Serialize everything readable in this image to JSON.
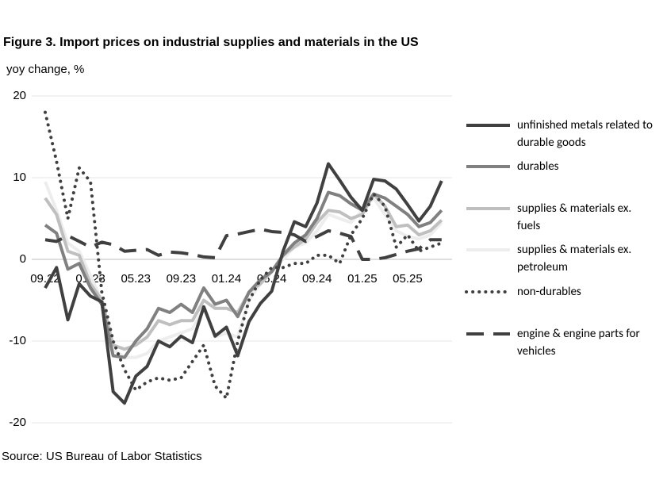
{
  "chart_data": {
    "type": "line",
    "title": "Figure 3. Import prices on industrial supplies and materials in the US",
    "y_label": "yoy change, %",
    "source": "Source: US Bureau of Labor Statistics",
    "categories": [
      "09.22",
      null,
      null,
      null,
      "01.23",
      null,
      null,
      null,
      "05.23",
      null,
      null,
      null,
      "09.23",
      null,
      null,
      null,
      "01.24",
      null,
      null,
      null,
      "05.24",
      null,
      null,
      null,
      "09.24",
      null,
      null,
      null,
      "01.25",
      null,
      null,
      null,
      "05.25",
      null,
      null,
      null
    ],
    "ylim": [
      -20,
      20
    ],
    "yticks": [
      -20,
      -10,
      0,
      10,
      20
    ],
    "grid": true,
    "series": [
      {
        "name": "unfinished metals related to durable goods",
        "color": "#404040",
        "dash": "solid",
        "values": [
          -3.5,
          -1,
          -7.4,
          -3,
          -4.5,
          -5.2,
          -16.2,
          -17.6,
          -14.3,
          -13.1,
          -10,
          -10.7,
          -9.4,
          -10.2,
          -5.8,
          -9.4,
          -8.3,
          -11.8,
          -7.6,
          -5.4,
          -3.9,
          1,
          4.6,
          4,
          6.9,
          11.7,
          9.7,
          7.6,
          6,
          9.8,
          9.6,
          8.6,
          6.7,
          4.7,
          6.5,
          9.6
        ]
      },
      {
        "name": "durables",
        "color": "#808080",
        "dash": "solid",
        "values": [
          4.2,
          3.2,
          -1.2,
          -0.5,
          -3.5,
          -5.5,
          -11.8,
          -12,
          -10,
          -8.5,
          -6,
          -6.5,
          -5.5,
          -6.5,
          -3.5,
          -5.5,
          -5,
          -7,
          -4,
          -2.5,
          -1.5,
          0.5,
          2,
          3,
          5,
          8.2,
          7.8,
          6.8,
          6,
          8,
          7.5,
          6.5,
          5.5,
          4,
          4.5,
          6
        ]
      },
      {
        "name": "supplies & materials ex. fuels",
        "color": "#bfbfbf",
        "dash": "solid",
        "values": [
          7.5,
          5.5,
          1,
          0.5,
          -3,
          -5,
          -10.5,
          -11,
          -10.5,
          -9.5,
          -7.5,
          -8,
          -7.5,
          -7.5,
          -5,
          -6,
          -6,
          -6.5,
          -4,
          -3,
          -1.5,
          0.5,
          1.5,
          2.5,
          4.5,
          6,
          5.8,
          5,
          5.5,
          8,
          6.5,
          4,
          4.2,
          3,
          3.5,
          4.8
        ]
      },
      {
        "name": "supplies & materials ex. petroleum",
        "color": "#ededed",
        "dash": "solid",
        "values": [
          9.5,
          6,
          2,
          1,
          -2,
          -5,
          -11,
          -12,
          -12,
          -11.5,
          -10,
          -9.5,
          -9,
          -8.5,
          -6,
          -9.5,
          -9,
          -9.5,
          -5,
          -3,
          -1.5,
          0,
          1.5,
          2,
          3.5,
          5.5,
          5,
          4.5,
          6,
          7.5,
          5.5,
          3.5,
          2.8,
          2.5,
          3,
          4.5
        ]
      },
      {
        "name": "non-durables",
        "color": "#404040",
        "dash": "dotted",
        "values": [
          18,
          12,
          5,
          11.2,
          9.5,
          -4,
          -10,
          -13.5,
          -16,
          -15,
          -14.5,
          -14.8,
          -14.5,
          -12.5,
          -10.5,
          -15.5,
          -17,
          -10,
          -5,
          -2.5,
          -1,
          -1,
          -0.5,
          -0.5,
          0.5,
          0.5,
          -0.5,
          3,
          5,
          8,
          6.5,
          1.5,
          3,
          1,
          1.5,
          2
        ]
      },
      {
        "name": "engine & engine parts for vehicles",
        "color": "#404040",
        "dash": "dashed",
        "values": [
          2.4,
          2.2,
          2.9,
          2.2,
          1.5,
          2.1,
          1.8,
          1.0,
          1.1,
          1.2,
          0.5,
          0.9,
          0.8,
          0.6,
          0.3,
          0.2,
          2.9,
          3.1,
          3.4,
          3.7,
          3.4,
          3.3,
          3.0,
          2.2,
          2.8,
          3.5,
          3.2,
          2.8,
          0,
          0,
          0.2,
          0.6,
          1,
          1.3,
          2.4,
          2.4
        ]
      }
    ]
  }
}
